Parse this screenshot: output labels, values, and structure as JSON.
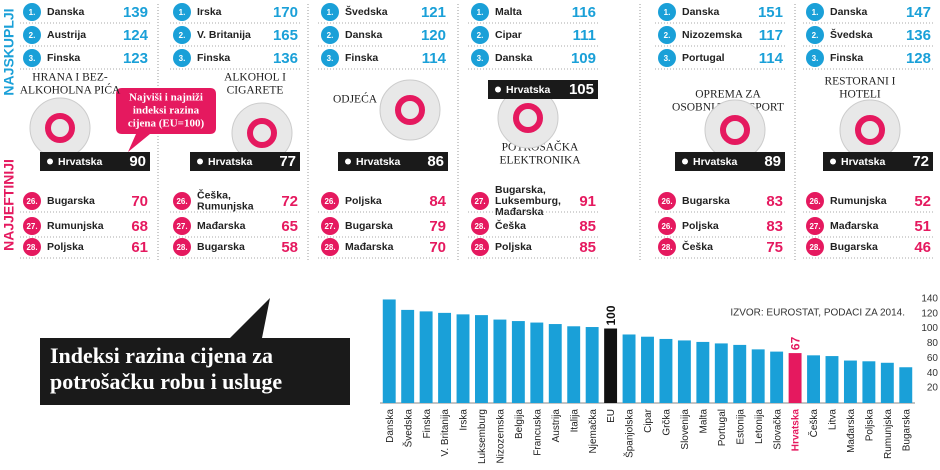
{
  "side_labels": {
    "top": "NAJSKUPLJI",
    "bottom": "NAJJEFTINIJI"
  },
  "callout": [
    "Najviši i najniži",
    "indeksi razina",
    "cijena (EU=100)"
  ],
  "panels": [
    {
      "category": [
        "HRANA I BEZ-",
        "ALKOHOLNA PIĆA"
      ],
      "top": [
        {
          "rank": "1.",
          "country": "Danska",
          "value": 139
        },
        {
          "rank": "2.",
          "country": "Austrija",
          "value": 124
        },
        {
          "rank": "3.",
          "country": "Finska",
          "value": 123
        }
      ],
      "croatia": {
        "country": "Hrvatska",
        "value": 90
      },
      "bottom": [
        {
          "rank": "26.",
          "country": "Bugarska",
          "value": 70
        },
        {
          "rank": "27.",
          "country": "Rumunjska",
          "value": 68
        },
        {
          "rank": "28.",
          "country": "Poljska",
          "value": 61
        }
      ]
    },
    {
      "category": [
        "ALKOHOL I",
        "CIGARETE"
      ],
      "top": [
        {
          "rank": "1.",
          "country": "Irska",
          "value": 170
        },
        {
          "rank": "2.",
          "country": "V. Britanija",
          "value": 165
        },
        {
          "rank": "3.",
          "country": "Finska",
          "value": 136
        }
      ],
      "croatia": {
        "country": "Hrvatska",
        "value": 77
      },
      "bottom": [
        {
          "rank": "26.",
          "country": [
            "Češka,",
            "Rumunjska"
          ],
          "value": 72
        },
        {
          "rank": "27.",
          "country": "Mađarska",
          "value": 65
        },
        {
          "rank": "28.",
          "country": "Bugarska",
          "value": 58
        }
      ]
    },
    {
      "category": [
        "ODJEĆA"
      ],
      "top": [
        {
          "rank": "1.",
          "country": "Švedska",
          "value": 121
        },
        {
          "rank": "2.",
          "country": "Danska",
          "value": 120
        },
        {
          "rank": "3.",
          "country": "Finska",
          "value": 114
        }
      ],
      "croatia": {
        "country": "Hrvatska",
        "value": 86
      },
      "bottom": [
        {
          "rank": "26.",
          "country": "Poljska",
          "value": 84
        },
        {
          "rank": "27.",
          "country": "Bugarska",
          "value": 79
        },
        {
          "rank": "28.",
          "country": "Mađarska",
          "value": 70
        }
      ]
    },
    {
      "category": [
        "POTROŠAČKA",
        "ELEKTRONIKA"
      ],
      "top": [
        {
          "rank": "1.",
          "country": "Malta",
          "value": 116
        },
        {
          "rank": "2.",
          "country": "Cipar",
          "value": 111
        },
        {
          "rank": "3.",
          "country": "Danska",
          "value": 109
        }
      ],
      "croatia": {
        "country": "Hrvatska",
        "value": 105
      },
      "bottom": [
        {
          "rank": "27.",
          "country": [
            "Bugarska,",
            "Luksemburg,",
            "Mađarska"
          ],
          "value": 91
        },
        {
          "rank": "28.",
          "country": "Češka",
          "value": 85
        },
        {
          "rank": "28.",
          "country": "Poljska",
          "value": 85
        }
      ]
    },
    {
      "category": [
        "OPREMA ZA",
        "OSOBNI TRANSPORT"
      ],
      "top": [
        {
          "rank": "1.",
          "country": "Danska",
          "value": 151
        },
        {
          "rank": "2.",
          "country": "Nizozemska",
          "value": 117
        },
        {
          "rank": "3.",
          "country": "Portugal",
          "value": 114
        }
      ],
      "croatia": {
        "country": "Hrvatska",
        "value": 89
      },
      "bottom": [
        {
          "rank": "26.",
          "country": "Bugarska",
          "value": 83
        },
        {
          "rank": "26.",
          "country": "Poljska",
          "value": 83
        },
        {
          "rank": "28.",
          "country": "Češka",
          "value": 75
        }
      ]
    },
    {
      "category": [
        "RESTORANI I",
        "HOTELI"
      ],
      "top": [
        {
          "rank": "1.",
          "country": "Danska",
          "value": 147
        },
        {
          "rank": "2.",
          "country": "Švedska",
          "value": 136
        },
        {
          "rank": "3.",
          "country": "Finska",
          "value": 128
        }
      ],
      "croatia": {
        "country": "Hrvatska",
        "value": 72
      },
      "bottom": [
        {
          "rank": "26.",
          "country": "Rumunjska",
          "value": 52
        },
        {
          "rank": "27.",
          "country": "Mađarska",
          "value": 51
        },
        {
          "rank": "28.",
          "country": "Bugarska",
          "value": 46
        }
      ]
    }
  ],
  "chart_data": {
    "type": "bar",
    "title": [
      "Indeksi razina cijena za",
      "potrošačku robu i usluge"
    ],
    "source": "IZVOR: EUROSTAT, PODACI ZA 2014.",
    "categories": [
      "Danska",
      "Švedska",
      "Finska",
      "V. Britanija",
      "Irska",
      "Luksemburg",
      "Nizozemska",
      "Belgija",
      "Francuska",
      "Austrija",
      "Italija",
      "Njemačka",
      "EU",
      "Španjolska",
      "Cipar",
      "Grčka",
      "Slovenija",
      "Malta",
      "Portugal",
      "Estonija",
      "Letonija",
      "Slovačka",
      "Hrvatska",
      "Češka",
      "Litva",
      "Mađarska",
      "Poljska",
      "Rumunjska",
      "Bugarska"
    ],
    "values": [
      139,
      125,
      123,
      121,
      119,
      118,
      112,
      110,
      108,
      106,
      103,
      102,
      100,
      92,
      89,
      86,
      84,
      82,
      80,
      78,
      72,
      69,
      67,
      64,
      63,
      57,
      56,
      54,
      48
    ],
    "value_labels": [
      null,
      null,
      null,
      null,
      null,
      null,
      null,
      null,
      null,
      null,
      null,
      null,
      "100",
      null,
      null,
      null,
      null,
      null,
      null,
      null,
      null,
      null,
      "67",
      null,
      null,
      null,
      null,
      null,
      null
    ],
    "colors": [
      "#1aa0d8",
      "#1aa0d8",
      "#1aa0d8",
      "#1aa0d8",
      "#1aa0d8",
      "#1aa0d8",
      "#1aa0d8",
      "#1aa0d8",
      "#1aa0d8",
      "#1aa0d8",
      "#1aa0d8",
      "#1aa0d8",
      "#111111",
      "#1aa0d8",
      "#1aa0d8",
      "#1aa0d8",
      "#1aa0d8",
      "#1aa0d8",
      "#1aa0d8",
      "#1aa0d8",
      "#1aa0d8",
      "#1aa0d8",
      "#e5195f",
      "#1aa0d8",
      "#1aa0d8",
      "#1aa0d8",
      "#1aa0d8",
      "#1aa0d8",
      "#1aa0d8"
    ],
    "ylim": [
      0,
      145
    ],
    "yticks": [
      20,
      40,
      60,
      80,
      100,
      120,
      140
    ],
    "grid": false
  }
}
